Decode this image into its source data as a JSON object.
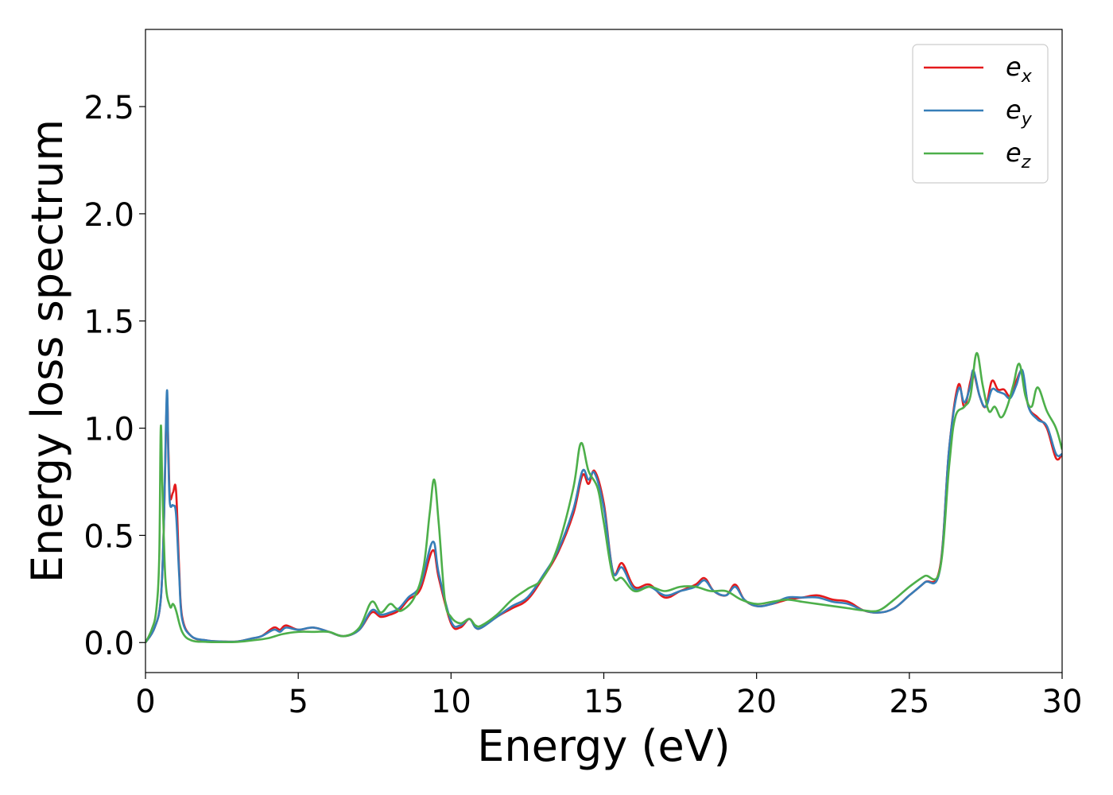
{
  "chart_data": {
    "type": "line",
    "xlabel": "Energy (eV)",
    "ylabel": "Energy loss spectrum",
    "xlim": [
      0,
      30
    ],
    "ylim": [
      -0.14,
      2.86
    ],
    "xticks": [
      0,
      5,
      10,
      15,
      20,
      25,
      30
    ],
    "xtick_labels": [
      "0",
      "5",
      "10",
      "15",
      "20",
      "25",
      "30"
    ],
    "yticks": [
      0.0,
      0.5,
      1.0,
      1.5,
      2.0,
      2.5
    ],
    "ytick_labels": [
      "0.0",
      "0.5",
      "1.0",
      "1.5",
      "2.0",
      "2.5"
    ],
    "grid": false,
    "legend_position": "top-right",
    "series": [
      {
        "name": "e",
        "subscript": "x",
        "color": "#e41a1c",
        "x": [
          0,
          0.3,
          0.5,
          0.6,
          0.7,
          0.75,
          0.8,
          0.9,
          1.0,
          1.1,
          1.2,
          1.5,
          2.0,
          2.5,
          3.0,
          3.5,
          3.8,
          4.2,
          4.4,
          4.6,
          5.0,
          5.5,
          6.0,
          6.5,
          7.0,
          7.4,
          7.7,
          8.0,
          8.3,
          8.6,
          9.0,
          9.4,
          9.6,
          10.0,
          10.3,
          10.6,
          10.8,
          11.0,
          11.5,
          12.0,
          12.5,
          13.0,
          13.5,
          14.0,
          14.3,
          14.5,
          14.7,
          15.0,
          15.3,
          15.6,
          16.0,
          16.5,
          17.0,
          17.5,
          18.0,
          18.3,
          18.6,
          19.0,
          19.3,
          19.6,
          20.0,
          20.5,
          21.0,
          21.5,
          22.0,
          22.5,
          23.0,
          23.5,
          24.0,
          24.5,
          25.0,
          25.5,
          26.0,
          26.3,
          26.6,
          26.8,
          27.0,
          27.1,
          27.3,
          27.5,
          27.7,
          27.9,
          28.1,
          28.3,
          28.5,
          28.7,
          28.9,
          29.2,
          29.5,
          29.8,
          30.0
        ],
        "values": [
          0.0,
          0.07,
          0.2,
          0.55,
          1.13,
          0.9,
          0.68,
          0.7,
          0.71,
          0.35,
          0.12,
          0.03,
          0.01,
          0.005,
          0.005,
          0.02,
          0.03,
          0.07,
          0.06,
          0.08,
          0.06,
          0.07,
          0.05,
          0.03,
          0.06,
          0.14,
          0.12,
          0.13,
          0.15,
          0.2,
          0.25,
          0.43,
          0.3,
          0.09,
          0.07,
          0.11,
          0.07,
          0.07,
          0.12,
          0.16,
          0.2,
          0.3,
          0.42,
          0.6,
          0.78,
          0.74,
          0.8,
          0.65,
          0.33,
          0.37,
          0.26,
          0.27,
          0.21,
          0.24,
          0.27,
          0.3,
          0.24,
          0.22,
          0.27,
          0.2,
          0.17,
          0.18,
          0.2,
          0.21,
          0.22,
          0.2,
          0.19,
          0.15,
          0.14,
          0.16,
          0.22,
          0.28,
          0.35,
          0.9,
          1.2,
          1.1,
          1.22,
          1.26,
          1.15,
          1.1,
          1.22,
          1.18,
          1.18,
          1.15,
          1.22,
          1.26,
          1.1,
          1.05,
          1.0,
          0.86,
          0.88
        ]
      },
      {
        "name": "e",
        "subscript": "y",
        "color": "#377eb8",
        "x": [
          0,
          0.3,
          0.5,
          0.6,
          0.7,
          0.75,
          0.8,
          0.9,
          1.0,
          1.1,
          1.2,
          1.5,
          2.0,
          2.5,
          3.0,
          3.5,
          3.8,
          4.2,
          4.4,
          4.6,
          5.0,
          5.5,
          6.0,
          6.5,
          7.0,
          7.4,
          7.7,
          8.0,
          8.3,
          8.6,
          9.0,
          9.4,
          9.6,
          10.0,
          10.3,
          10.6,
          10.8,
          11.0,
          11.5,
          12.0,
          12.5,
          13.0,
          13.5,
          14.0,
          14.3,
          14.5,
          14.7,
          15.0,
          15.3,
          15.6,
          16.0,
          16.5,
          17.0,
          17.5,
          18.0,
          18.3,
          18.6,
          19.0,
          19.3,
          19.6,
          20.0,
          20.5,
          21.0,
          21.5,
          22.0,
          22.5,
          23.0,
          23.5,
          24.0,
          24.5,
          25.0,
          25.5,
          26.0,
          26.3,
          26.6,
          26.8,
          27.0,
          27.1,
          27.3,
          27.5,
          27.7,
          27.9,
          28.1,
          28.3,
          28.5,
          28.7,
          28.9,
          29.2,
          29.5,
          29.8,
          30.0
        ],
        "values": [
          0.0,
          0.07,
          0.2,
          0.55,
          1.17,
          0.85,
          0.65,
          0.64,
          0.6,
          0.32,
          0.11,
          0.03,
          0.01,
          0.005,
          0.005,
          0.02,
          0.03,
          0.06,
          0.05,
          0.07,
          0.06,
          0.07,
          0.05,
          0.03,
          0.06,
          0.15,
          0.13,
          0.14,
          0.16,
          0.21,
          0.27,
          0.47,
          0.32,
          0.1,
          0.08,
          0.11,
          0.07,
          0.07,
          0.12,
          0.17,
          0.21,
          0.31,
          0.43,
          0.62,
          0.8,
          0.76,
          0.79,
          0.63,
          0.33,
          0.35,
          0.25,
          0.26,
          0.22,
          0.24,
          0.26,
          0.29,
          0.24,
          0.22,
          0.26,
          0.2,
          0.17,
          0.18,
          0.21,
          0.21,
          0.21,
          0.19,
          0.18,
          0.15,
          0.14,
          0.16,
          0.22,
          0.28,
          0.34,
          0.9,
          1.18,
          1.12,
          1.2,
          1.27,
          1.15,
          1.1,
          1.18,
          1.17,
          1.16,
          1.14,
          1.2,
          1.27,
          1.1,
          1.04,
          1.01,
          0.88,
          0.88
        ]
      },
      {
        "name": "e",
        "subscript": "z",
        "color": "#4daf4a",
        "x": [
          0,
          0.2,
          0.35,
          0.45,
          0.5,
          0.55,
          0.65,
          0.8,
          0.9,
          1.0,
          1.2,
          1.5,
          2.0,
          2.5,
          3.0,
          3.5,
          4.0,
          4.5,
          5.0,
          5.5,
          6.0,
          6.5,
          7.0,
          7.4,
          7.7,
          8.0,
          8.2,
          8.4,
          8.8,
          9.1,
          9.3,
          9.45,
          9.6,
          9.8,
          10.0,
          10.3,
          10.6,
          10.8,
          11.0,
          11.5,
          12.0,
          12.5,
          13.0,
          13.5,
          14.0,
          14.25,
          14.5,
          14.8,
          15.0,
          15.3,
          15.6,
          16.0,
          16.5,
          17.0,
          17.5,
          18.0,
          18.5,
          19.0,
          19.5,
          20.0,
          20.5,
          21.0,
          21.5,
          22.0,
          22.5,
          23.0,
          23.5,
          24.0,
          24.5,
          25.0,
          25.5,
          26.0,
          26.3,
          26.5,
          26.8,
          27.0,
          27.2,
          27.4,
          27.6,
          27.8,
          28.0,
          28.2,
          28.4,
          28.6,
          28.8,
          29.0,
          29.2,
          29.5,
          29.8,
          30.0
        ],
        "values": [
          0.0,
          0.06,
          0.15,
          0.4,
          1.0,
          0.75,
          0.3,
          0.17,
          0.18,
          0.15,
          0.05,
          0.01,
          0.003,
          0.002,
          0.003,
          0.01,
          0.02,
          0.04,
          0.05,
          0.05,
          0.05,
          0.03,
          0.07,
          0.19,
          0.14,
          0.18,
          0.16,
          0.15,
          0.21,
          0.35,
          0.6,
          0.76,
          0.55,
          0.2,
          0.12,
          0.09,
          0.11,
          0.08,
          0.08,
          0.13,
          0.2,
          0.25,
          0.3,
          0.45,
          0.72,
          0.93,
          0.8,
          0.72,
          0.56,
          0.31,
          0.3,
          0.24,
          0.26,
          0.24,
          0.26,
          0.26,
          0.24,
          0.24,
          0.2,
          0.18,
          0.19,
          0.2,
          0.19,
          0.18,
          0.17,
          0.16,
          0.15,
          0.15,
          0.2,
          0.26,
          0.31,
          0.34,
          0.82,
          1.05,
          1.1,
          1.15,
          1.35,
          1.2,
          1.08,
          1.1,
          1.05,
          1.1,
          1.2,
          1.3,
          1.15,
          1.1,
          1.19,
          1.08,
          1.0,
          0.9
        ]
      }
    ]
  }
}
